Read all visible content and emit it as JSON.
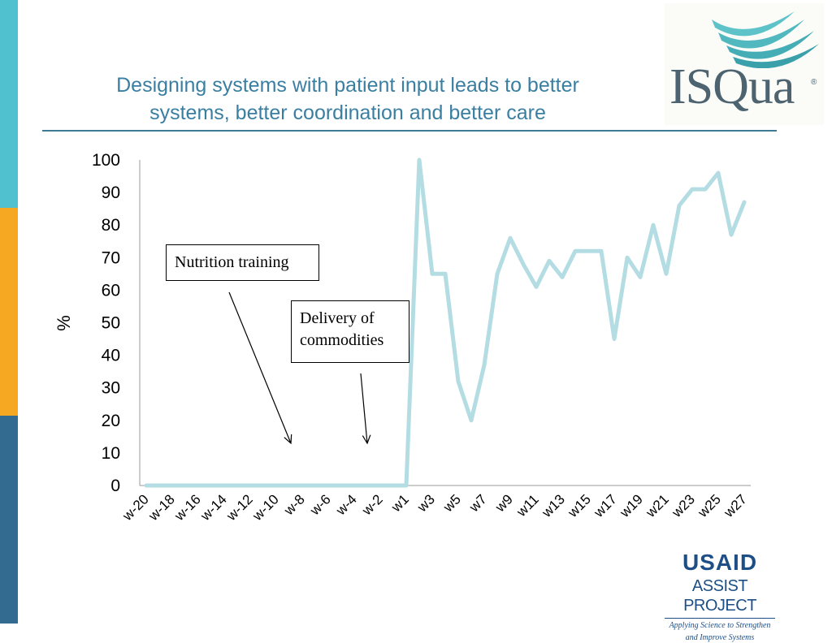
{
  "title_line1": "Designing systems with patient input leads to better",
  "title_line2": "systems, better coordination and better care",
  "logos": {
    "isqua": "ISQua",
    "isqua_reg": "®",
    "usaid_name": "USAID",
    "usaid_project": "ASSIST PROJECT",
    "usaid_tagline1": "Applying Science to Strengthen",
    "usaid_tagline2": "and Improve Systems"
  },
  "annotations": {
    "nutrition_training": "Nutrition training",
    "delivery_line1": "Delivery of",
    "delivery_line2": "commodities"
  },
  "colors": {
    "line": "#b3dde3",
    "title": "#3a7fa2",
    "rule": "#3f7a95",
    "side_teal": "#4fc1cf",
    "side_orange": "#f7a823",
    "side_blue": "#336a90",
    "usaid_blue": "#1d4f86"
  },
  "chart_data": {
    "type": "line",
    "title": "",
    "xlabel": "",
    "ylabel": "%",
    "ylim": [
      0,
      100
    ],
    "y_ticks": [
      0,
      10,
      20,
      30,
      40,
      50,
      60,
      70,
      80,
      90,
      100
    ],
    "x": [
      "w-20",
      "w-19",
      "w-18",
      "w-17",
      "w-16",
      "w-15",
      "w-14",
      "w-13",
      "w-12",
      "w-11",
      "w-10",
      "w-9",
      "w-8",
      "w-7",
      "w-6",
      "w-5",
      "w-4",
      "w-3",
      "w-2",
      "w-1",
      "w1",
      "w2",
      "w3",
      "w4",
      "w5",
      "w6",
      "w7",
      "w8",
      "w9",
      "w10",
      "w11",
      "w12",
      "w13",
      "w14",
      "w15",
      "w16",
      "w17",
      "w18",
      "w19",
      "w20",
      "w21",
      "w22",
      "w23",
      "w24",
      "w25",
      "w26",
      "w27"
    ],
    "x_tick_labels": [
      "w-20",
      "w-18",
      "w-16",
      "w-14",
      "w-12",
      "w-10",
      "w-8",
      "w-6",
      "w-4",
      "w-2",
      "w1",
      "w3",
      "w5",
      "w7",
      "w9",
      "w11",
      "w13",
      "w15",
      "w17",
      "w19",
      "w21",
      "w23",
      "w25",
      "w27"
    ],
    "series": [
      {
        "name": "%",
        "values": [
          0,
          0,
          0,
          0,
          0,
          0,
          0,
          0,
          0,
          0,
          0,
          0,
          0,
          0,
          0,
          0,
          0,
          0,
          0,
          0,
          0,
          100,
          65,
          65,
          32,
          20,
          37,
          65,
          76,
          68,
          61,
          69,
          64,
          72,
          72,
          72,
          45,
          70,
          64,
          80,
          65,
          86,
          91,
          91,
          96,
          77,
          87
        ]
      }
    ]
  }
}
